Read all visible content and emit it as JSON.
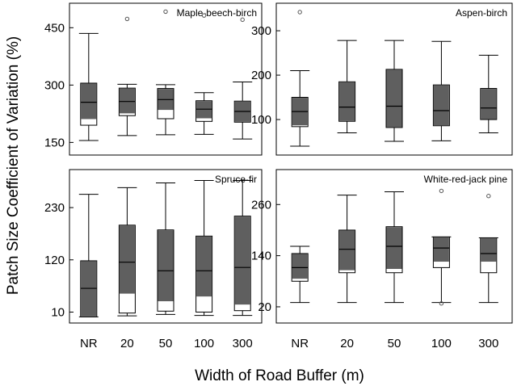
{
  "figure": {
    "ylabel": "Patch Size Coefficient of Variation (%)",
    "xlabel": "Width of Road Buffer (m)",
    "colors": {
      "fill": "#5f5f5f",
      "box_line": "#000000",
      "outlier": "#555555",
      "background": "#ffffff"
    }
  },
  "chart_data": [
    {
      "type": "box",
      "title": "Maple-beech-birch",
      "categories": [
        "NR",
        "20",
        "50",
        "100",
        "300"
      ],
      "yticks": [
        150,
        300,
        450
      ],
      "ylim": [
        117,
        514
      ],
      "grid": false,
      "boxes": [
        {
          "min": 155,
          "q1": 195,
          "shaded_low": 210,
          "median": 255,
          "q3": 305,
          "max": 435,
          "outliers": []
        },
        {
          "min": 168,
          "q1": 220,
          "shaded_low": 225,
          "median": 257,
          "q3": 292,
          "max": 302,
          "outliers": [
            473
          ]
        },
        {
          "min": 170,
          "q1": 212,
          "shaded_low": 234,
          "median": 262,
          "q3": 291,
          "max": 301,
          "outliers": [
            492
          ]
        },
        {
          "min": 171,
          "q1": 205,
          "shaded_low": 212,
          "median": 237,
          "q3": 259,
          "max": 280,
          "outliers": [
            482
          ]
        },
        {
          "min": 159,
          "q1": 203,
          "shaded_low": 203,
          "median": 231,
          "q3": 258,
          "max": 308,
          "outliers": [
            471
          ]
        }
      ]
    },
    {
      "type": "box",
      "title": "Aspen-birch",
      "categories": [
        "NR",
        "20",
        "50",
        "100",
        "300"
      ],
      "yticks": [
        100,
        200,
        300
      ],
      "ylim": [
        20,
        362
      ],
      "grid": false,
      "boxes": [
        {
          "min": 40,
          "q1": 84,
          "shaded_low": 86,
          "median": 118,
          "q3": 150,
          "max": 210,
          "outliers": [
            342
          ]
        },
        {
          "min": 70,
          "q1": 96,
          "shaded_low": 96,
          "median": 128,
          "q3": 185,
          "max": 278,
          "outliers": []
        },
        {
          "min": 51,
          "q1": 82,
          "shaded_low": 82,
          "median": 130,
          "q3": 213,
          "max": 278,
          "outliers": []
        },
        {
          "min": 52,
          "q1": 86,
          "shaded_low": 86,
          "median": 120,
          "q3": 178,
          "max": 276,
          "outliers": []
        },
        {
          "min": 70,
          "q1": 100,
          "shaded_low": 100,
          "median": 126,
          "q3": 170,
          "max": 245,
          "outliers": []
        }
      ]
    },
    {
      "type": "box",
      "title": "Spruce-fir",
      "categories": [
        "NR",
        "20",
        "50",
        "100",
        "300"
      ],
      "yticks": [
        10,
        120,
        230
      ],
      "ylim": [
        -13,
        310
      ],
      "grid": false,
      "boxes": [
        {
          "min": 0,
          "q1": 0,
          "shaded_low": 0,
          "median": 60,
          "q3": 118,
          "max": 258,
          "outliers": []
        },
        {
          "min": 2,
          "q1": 8,
          "shaded_low": 48,
          "median": 115,
          "q3": 193,
          "max": 272,
          "outliers": []
        },
        {
          "min": 5,
          "q1": 12,
          "shaded_low": 32,
          "median": 97,
          "q3": 183,
          "max": 282,
          "outliers": []
        },
        {
          "min": 3,
          "q1": 10,
          "shaded_low": 42,
          "median": 97,
          "q3": 170,
          "max": 287,
          "outliers": []
        },
        {
          "min": 3,
          "q1": 13,
          "shaded_low": 25,
          "median": 104,
          "q3": 212,
          "max": 287,
          "outliers": []
        }
      ]
    },
    {
      "type": "box",
      "title": "White-red-jack pine",
      "categories": [
        "NR",
        "20",
        "50",
        "100",
        "300"
      ],
      "yticks": [
        20,
        140,
        260
      ],
      "ylim": [
        -18,
        342
      ],
      "grid": false,
      "boxes": [
        {
          "min": 30,
          "q1": 80,
          "shaded_low": 85,
          "median": 112,
          "q3": 145,
          "max": 162,
          "outliers": []
        },
        {
          "min": 30,
          "q1": 100,
          "shaded_low": 105,
          "median": 155,
          "q3": 200,
          "max": 282,
          "outliers": []
        },
        {
          "min": 30,
          "q1": 100,
          "shaded_low": 108,
          "median": 162,
          "q3": 208,
          "max": 290,
          "outliers": []
        },
        {
          "min": 30,
          "q1": 112,
          "shaded_low": 125,
          "median": 158,
          "q3": 184,
          "max": 184,
          "outliers": [
            292,
            28
          ]
        },
        {
          "min": 30,
          "q1": 100,
          "shaded_low": 125,
          "median": 145,
          "q3": 182,
          "max": 182,
          "outliers": [
            280
          ]
        }
      ]
    }
  ]
}
